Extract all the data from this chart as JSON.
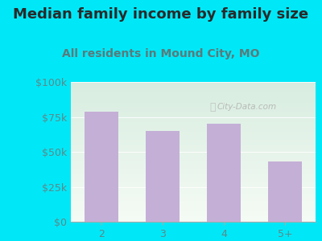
{
  "title": "Median family income by family size",
  "subtitle": "All residents in Mound City, MO",
  "categories": [
    "2",
    "3",
    "4",
    "5+"
  ],
  "values": [
    79000,
    65000,
    70000,
    43000
  ],
  "bar_color": "#c4afd6",
  "background_outer": "#00e8f8",
  "title_color": "#2a2a2a",
  "subtitle_color": "#5a7a7a",
  "tick_label_color": "#5a8a8a",
  "ylim": [
    0,
    100000
  ],
  "yticks": [
    0,
    25000,
    50000,
    75000,
    100000
  ],
  "ytick_labels": [
    "$0",
    "$25k",
    "$50k",
    "$75k",
    "$100k"
  ],
  "watermark": "City-Data.com",
  "title_fontsize": 13,
  "subtitle_fontsize": 10,
  "tick_fontsize": 9,
  "bg_top_color": "#d8ede0",
  "bg_bottom_color": "#f5fbf5"
}
